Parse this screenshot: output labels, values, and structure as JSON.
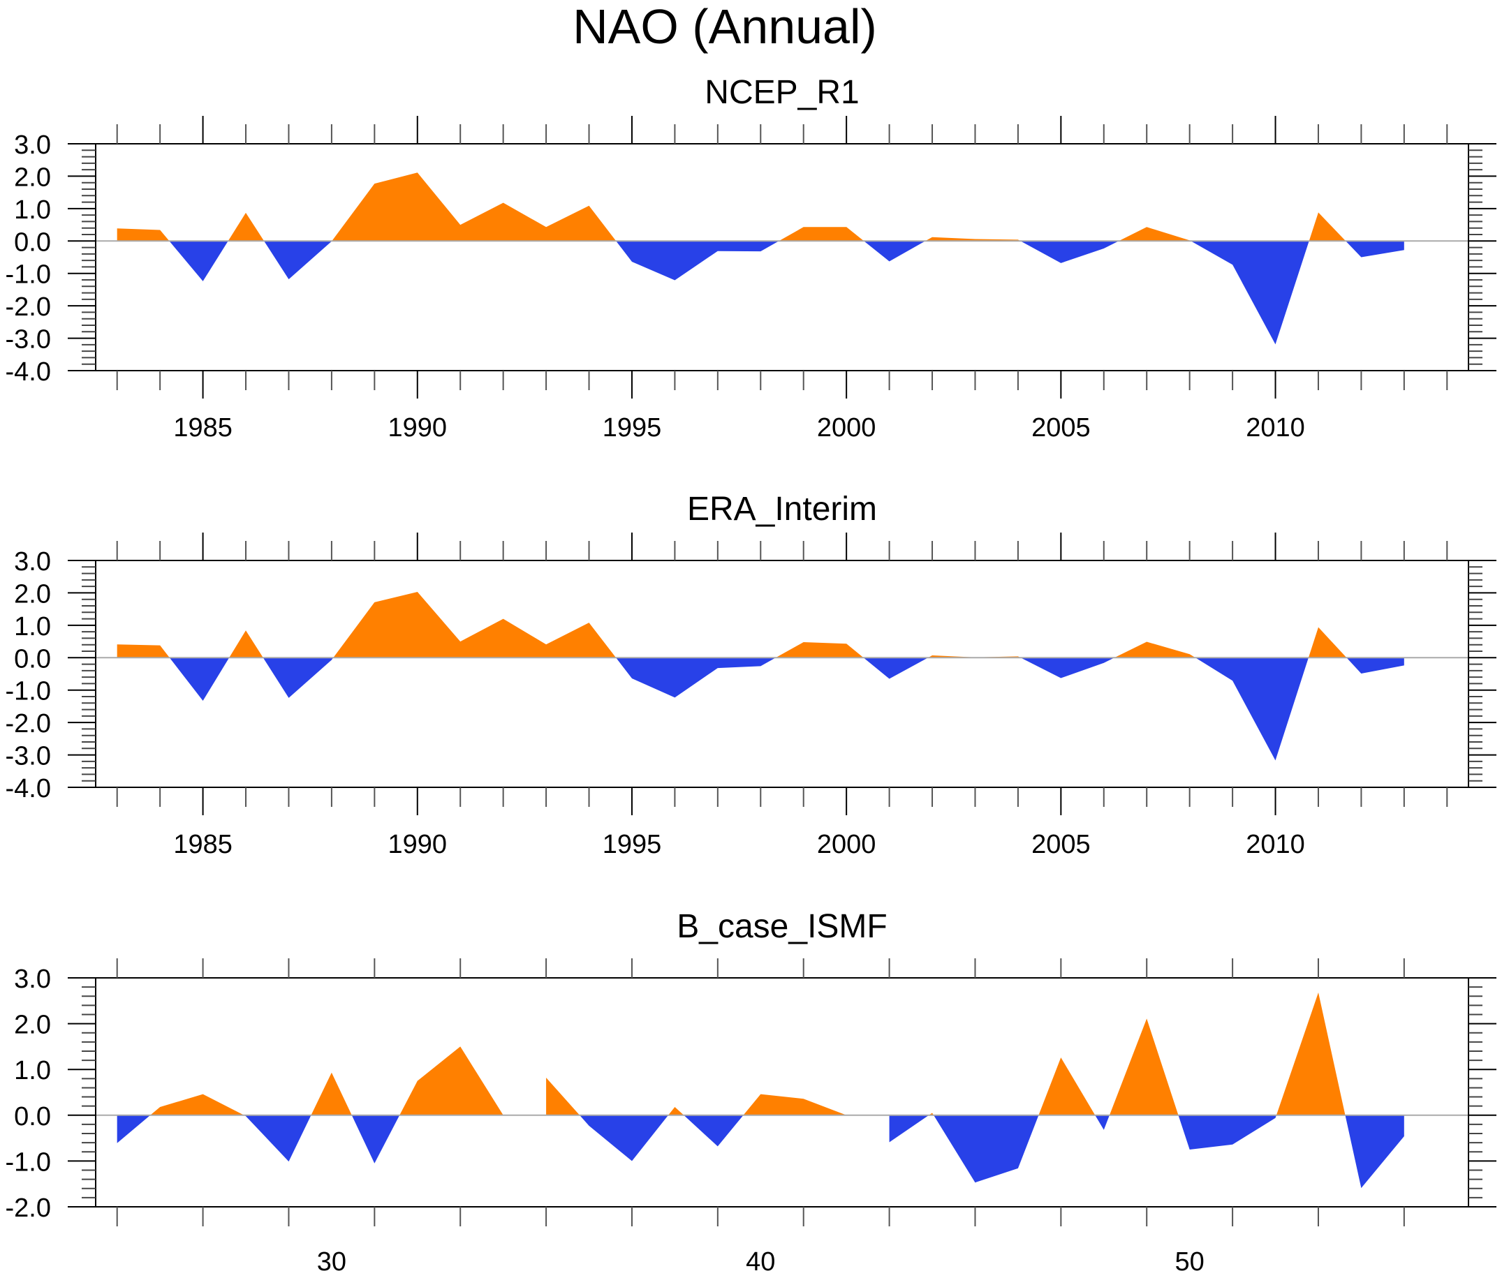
{
  "chart_data": {
    "type": "area",
    "title": "NAO (Annual)",
    "colors": {
      "positive": "#ff8000",
      "negative": "#2841e8",
      "zero_line": "#aaaaaa",
      "axis": "#000000"
    },
    "panels": [
      {
        "subtitle": "NCEP_R1",
        "xlabel": "",
        "ylabel": "",
        "xlim": [
          1982.5,
          2014.5
        ],
        "ylim": [
          -4.0,
          3.0
        ],
        "yticks": [
          3.0,
          2.0,
          1.0,
          0.0,
          -1.0,
          -2.0,
          -3.0,
          -4.0
        ],
        "ytick_labels": [
          "3.0",
          "2.0",
          "1.0",
          "0.0",
          "-1.0",
          "-2.0",
          "-3.0",
          "-4.0"
        ],
        "xticks": [
          1985,
          1990,
          1995,
          2000,
          2005,
          2010
        ],
        "xtick_labels": [
          "1985",
          "1990",
          "1995",
          "2000",
          "2005",
          "2010"
        ],
        "x_minor_step": 1,
        "x": [
          1983,
          1984,
          1985,
          1986,
          1987,
          1988,
          1989,
          1990,
          1991,
          1992,
          1993,
          1994,
          1995,
          1996,
          1997,
          1998,
          1999,
          2000,
          2001,
          2002,
          2003,
          2004,
          2005,
          2006,
          2007,
          2008,
          2009,
          2010,
          2011,
          2012,
          2013
        ],
        "values": [
          0.39,
          0.34,
          -1.24,
          0.87,
          -1.18,
          -0.01,
          1.77,
          2.11,
          0.5,
          1.18,
          0.43,
          1.09,
          -0.64,
          -1.21,
          -0.31,
          -0.32,
          0.43,
          0.43,
          -0.63,
          0.12,
          0.06,
          0.04,
          -0.68,
          -0.23,
          0.43,
          0.02,
          -0.73,
          -3.19,
          0.88,
          -0.5,
          -0.28
        ]
      },
      {
        "subtitle": "ERA_Interim",
        "xlabel": "",
        "ylabel": "",
        "xlim": [
          1982.5,
          2014.5
        ],
        "ylim": [
          -4.0,
          3.0
        ],
        "yticks": [
          3.0,
          2.0,
          1.0,
          0.0,
          -1.0,
          -2.0,
          -3.0,
          -4.0
        ],
        "ytick_labels": [
          "3.0",
          "2.0",
          "1.0",
          "0.0",
          "-1.0",
          "-2.0",
          "-3.0",
          "-4.0"
        ],
        "xticks": [
          1985,
          1990,
          1995,
          2000,
          2005,
          2010
        ],
        "xtick_labels": [
          "1985",
          "1990",
          "1995",
          "2000",
          "2005",
          "2010"
        ],
        "x_minor_step": 1,
        "x": [
          1983,
          1984,
          1985,
          1986,
          1987,
          1988,
          1989,
          1990,
          1991,
          1992,
          1993,
          1994,
          1995,
          1996,
          1997,
          1998,
          1999,
          2000,
          2001,
          2002,
          2003,
          2004,
          2005,
          2006,
          2007,
          2008,
          2009,
          2010,
          2011,
          2012,
          2013
        ],
        "values": [
          0.41,
          0.38,
          -1.33,
          0.84,
          -1.24,
          -0.07,
          1.71,
          2.03,
          0.5,
          1.2,
          0.41,
          1.08,
          -0.64,
          -1.23,
          -0.32,
          -0.26,
          0.48,
          0.43,
          -0.65,
          0.07,
          0.01,
          0.04,
          -0.63,
          -0.16,
          0.49,
          0.11,
          -0.71,
          -3.17,
          0.94,
          -0.49,
          -0.24
        ]
      },
      {
        "subtitle": "B_case_ISMF",
        "xlabel": "",
        "ylabel": "",
        "xlim": [
          24.5,
          56.5
        ],
        "ylim": [
          -2.0,
          3.0
        ],
        "yticks": [
          3.0,
          2.0,
          1.0,
          0.0,
          -1.0,
          -2.0
        ],
        "ytick_labels": [
          "3.0",
          "2.0",
          "1.0",
          "0.0",
          "-1.0",
          "-2.0"
        ],
        "xticks": [
          30,
          40,
          50
        ],
        "xtick_labels": [
          "30",
          "40",
          "50"
        ],
        "x_minor_step": 2,
        "x": [
          25,
          26,
          27,
          28,
          29,
          30,
          31,
          32,
          33,
          34,
          35,
          36,
          37,
          38,
          39,
          40,
          41,
          42,
          43,
          44,
          45,
          46,
          47,
          48,
          49,
          50,
          51,
          52,
          53,
          54,
          55
        ],
        "values": [
          -0.61,
          0.18,
          0.46,
          -0.02,
          -1.01,
          0.93,
          -1.05,
          0.75,
          1.5,
          0.0,
          0.82,
          -0.23,
          -1.0,
          0.18,
          -0.68,
          0.46,
          0.36,
          0.0,
          -0.59,
          0.05,
          -1.47,
          -1.16,
          1.26,
          -0.32,
          2.11,
          -0.75,
          -0.64,
          -0.06,
          2.68,
          -1.59,
          -0.46
        ]
      }
    ]
  }
}
